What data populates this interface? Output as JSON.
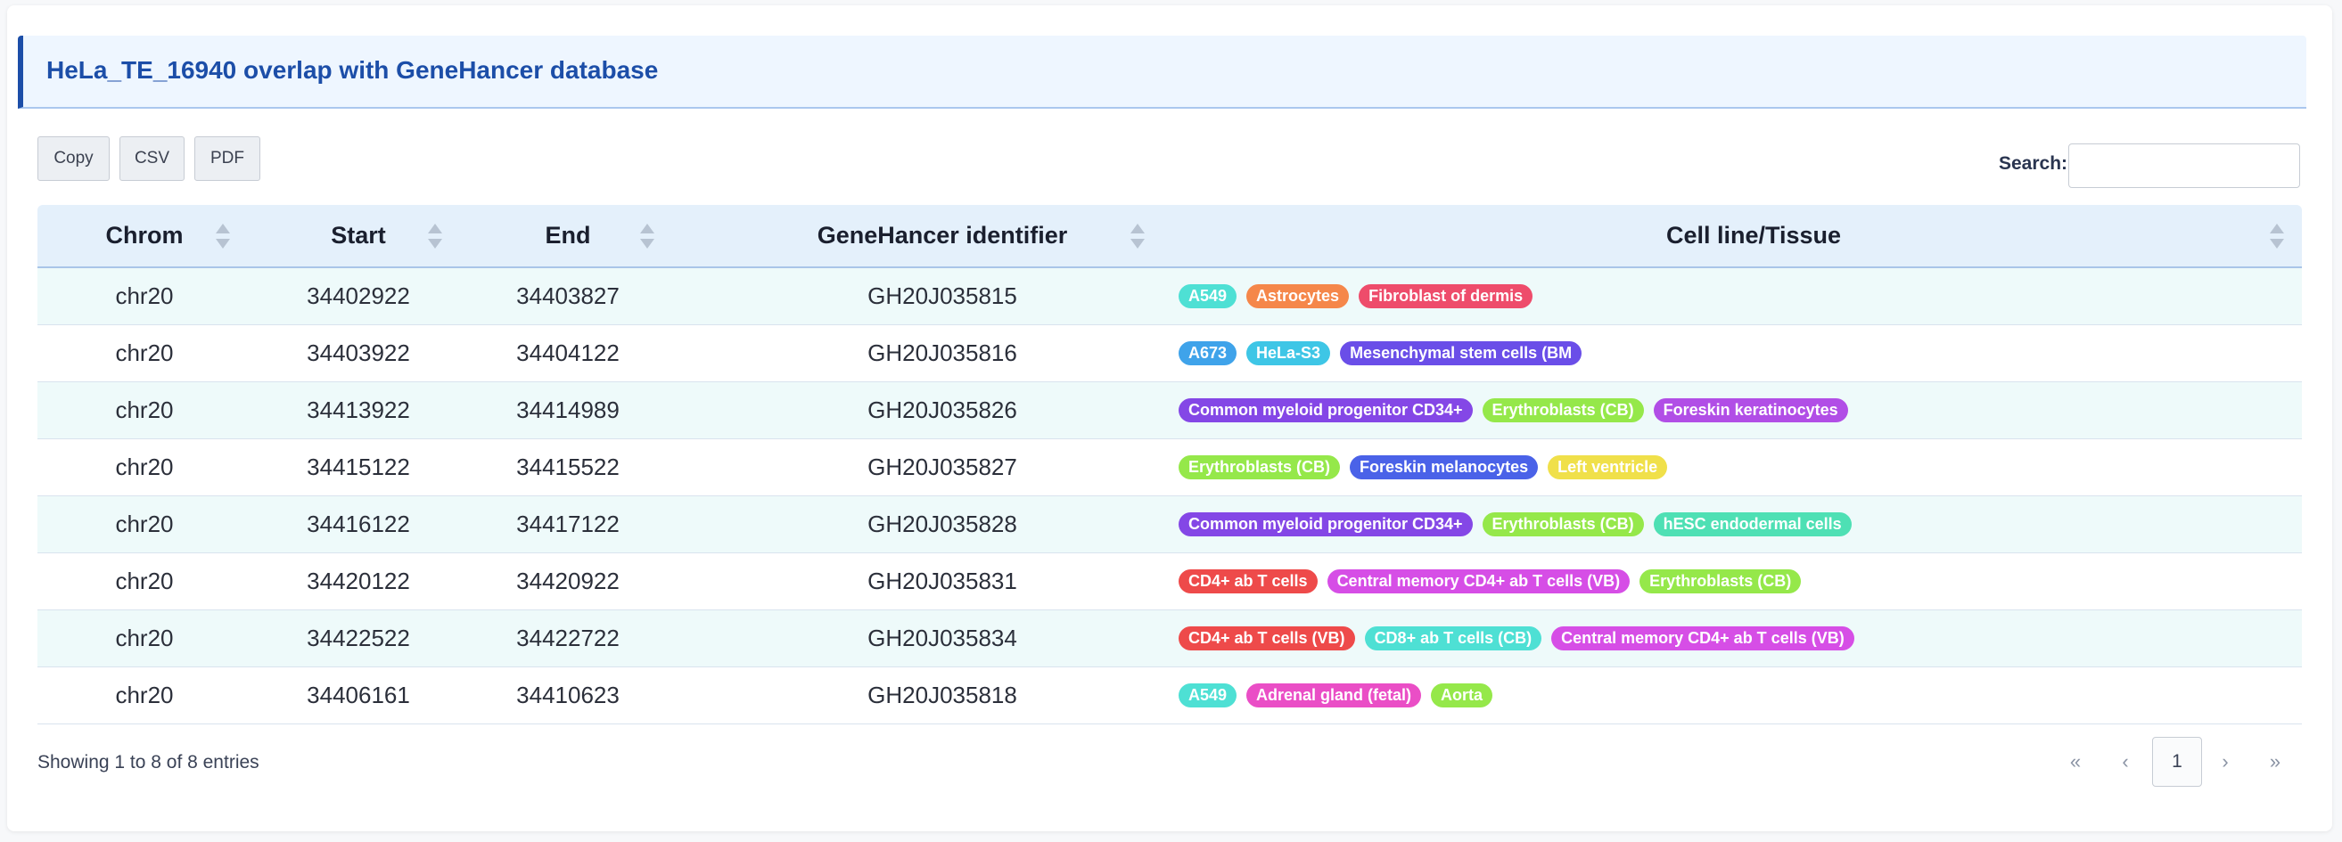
{
  "panel": {
    "title": "HeLa_TE_16940 overlap with GeneHancer database"
  },
  "buttons": {
    "copy": "Copy",
    "csv": "CSV",
    "pdf": "PDF"
  },
  "search": {
    "label": "Search:",
    "value": "",
    "placeholder": ""
  },
  "table": {
    "headers": [
      "Chrom",
      "Start",
      "End",
      "GeneHancer identifier",
      "Cell line/Tissue"
    ],
    "rows": [
      {
        "chrom": "chr20",
        "start": "34402922",
        "end": "34403827",
        "id": "GH20J035815",
        "tags": [
          {
            "label": "A549",
            "color": "#4ee0d4"
          },
          {
            "label": "Astrocytes",
            "color": "#f5874a"
          },
          {
            "label": "Fibroblast of dermis",
            "color": "#ee4c6b"
          }
        ]
      },
      {
        "chrom": "chr20",
        "start": "34403922",
        "end": "34404122",
        "id": "GH20J035816",
        "tags": [
          {
            "label": "A673",
            "color": "#3fa3ea"
          },
          {
            "label": "HeLa-S3",
            "color": "#3ec6e6"
          },
          {
            "label": "Mesenchymal stem cells (BM",
            "color": "#6a4ee8"
          }
        ]
      },
      {
        "chrom": "chr20",
        "start": "34413922",
        "end": "34414989",
        "id": "GH20J035826",
        "tags": [
          {
            "label": "Common myeloid progenitor CD34+",
            "color": "#8447e6"
          },
          {
            "label": "Erythroblasts (CB)",
            "color": "#95e84a"
          },
          {
            "label": "Foreskin keratinocytes",
            "color": "#b14ee6"
          }
        ]
      },
      {
        "chrom": "chr20",
        "start": "34415122",
        "end": "34415522",
        "id": "GH20J035827",
        "tags": [
          {
            "label": "Erythroblasts (CB)",
            "color": "#95e84a"
          },
          {
            "label": "Foreskin melanocytes",
            "color": "#4a62e8"
          },
          {
            "label": "Left ventricle",
            "color": "#f0e04a"
          }
        ]
      },
      {
        "chrom": "chr20",
        "start": "34416122",
        "end": "34417122",
        "id": "GH20J035828",
        "tags": [
          {
            "label": "Common myeloid progenitor CD34+",
            "color": "#8447e6"
          },
          {
            "label": "Erythroblasts (CB)",
            "color": "#95e84a"
          },
          {
            "label": "hESC endodermal cells",
            "color": "#4ee0b4"
          }
        ]
      },
      {
        "chrom": "chr20",
        "start": "34420122",
        "end": "34420922",
        "id": "GH20J035831",
        "tags": [
          {
            "label": "CD4+ ab T cells",
            "color": "#ee4a4a"
          },
          {
            "label": "Central memory CD4+ ab T cells (VB)",
            "color": "#d64ee6"
          },
          {
            "label": "Erythroblasts (CB)",
            "color": "#95e84a"
          }
        ]
      },
      {
        "chrom": "chr20",
        "start": "34422522",
        "end": "34422722",
        "id": "GH20J035834",
        "tags": [
          {
            "label": "CD4+ ab T cells (VB)",
            "color": "#ee4a4a"
          },
          {
            "label": "CD8+ ab T cells (CB)",
            "color": "#4ee0d4"
          },
          {
            "label": "Central memory CD4+ ab T cells (VB)",
            "color": "#d64ee6"
          }
        ]
      },
      {
        "chrom": "chr20",
        "start": "34406161",
        "end": "34410623",
        "id": "GH20J035818",
        "tags": [
          {
            "label": "A549",
            "color": "#4ee0d4"
          },
          {
            "label": "Adrenal gland (fetal)",
            "color": "#ea4ec6"
          },
          {
            "label": "Aorta",
            "color": "#95e84a"
          }
        ]
      }
    ]
  },
  "footer": {
    "info": "Showing 1 to 8 of 8 entries",
    "pagination": {
      "first": "«",
      "prev": "‹",
      "current": "1",
      "next": "›",
      "last": "»"
    }
  }
}
